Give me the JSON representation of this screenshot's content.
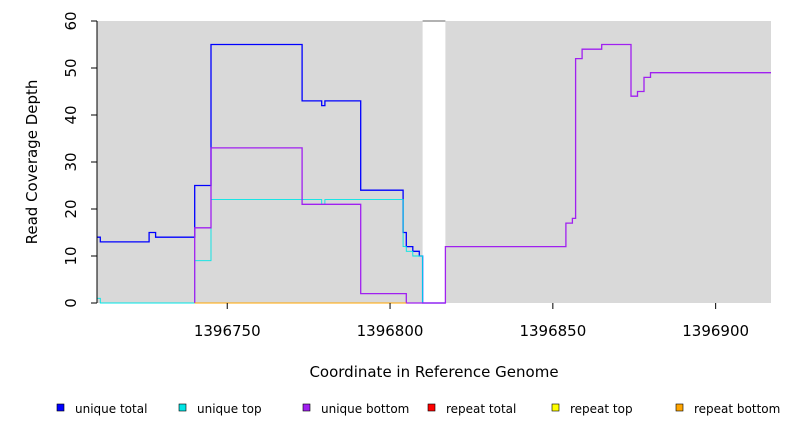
{
  "chart_data": {
    "type": "line",
    "title": "",
    "xlabel": "Coordinate in Reference Genome",
    "ylabel": "Read Coverage Depth",
    "xlim": [
      1396710,
      1396917
    ],
    "ylim": [
      0,
      60
    ],
    "xticks": [
      1396750,
      1396800,
      1396850,
      1396900
    ],
    "xtick_labels": [
      "1396750",
      "1396800",
      "1396850",
      "1396900"
    ],
    "yticks": [
      0,
      10,
      20,
      30,
      40,
      50,
      60
    ],
    "ytick_labels": [
      "0",
      "10",
      "20",
      "30",
      "40",
      "50",
      "60"
    ],
    "background_color": "#d9d9d9",
    "gap_region": [
      1396810,
      1396817
    ],
    "legend_position": "bottom",
    "series": [
      {
        "name": "unique total",
        "color": "#0000ff",
        "points": [
          [
            1396710,
            14
          ],
          [
            1396711,
            13
          ],
          [
            1396726,
            15
          ],
          [
            1396728,
            14
          ],
          [
            1396740,
            25
          ],
          [
            1396745,
            55
          ],
          [
            1396773,
            43
          ],
          [
            1396779,
            42
          ],
          [
            1396780,
            43
          ],
          [
            1396791,
            24
          ],
          [
            1396804,
            15
          ],
          [
            1396805,
            12
          ],
          [
            1396807,
            11
          ],
          [
            1396809,
            10
          ],
          [
            1396810,
            0
          ],
          [
            1396817,
            0
          ]
        ]
      },
      {
        "name": "unique top",
        "color": "#00e5e5",
        "points": [
          [
            1396710,
            1
          ],
          [
            1396711,
            0
          ],
          [
            1396740,
            9
          ],
          [
            1396745,
            22
          ],
          [
            1396778,
            22
          ],
          [
            1396779,
            21
          ],
          [
            1396780,
            22
          ],
          [
            1396804,
            12
          ],
          [
            1396805,
            11
          ],
          [
            1396807,
            10
          ],
          [
            1396809,
            10
          ],
          [
            1396810,
            0
          ]
        ]
      },
      {
        "name": "unique bottom",
        "color": "#a020f0",
        "points": [
          [
            1396740,
            0
          ],
          [
            1396740,
            16
          ],
          [
            1396745,
            33
          ],
          [
            1396773,
            21
          ],
          [
            1396791,
            2
          ],
          [
            1396805,
            0
          ],
          [
            1396817,
            0
          ],
          [
            1396817,
            12
          ],
          [
            1396854,
            17
          ],
          [
            1396856,
            18
          ],
          [
            1396857,
            52
          ],
          [
            1396859,
            54
          ],
          [
            1396865,
            55
          ],
          [
            1396874,
            44
          ],
          [
            1396876,
            45
          ],
          [
            1396878,
            48
          ],
          [
            1396880,
            49
          ],
          [
            1396917,
            49
          ]
        ]
      },
      {
        "name": "repeat total",
        "color": "#ff0000",
        "points": []
      },
      {
        "name": "repeat top",
        "color": "#ffff00",
        "points": []
      },
      {
        "name": "repeat bottom",
        "color": "#ffa500",
        "points": [
          [
            1396740,
            0
          ],
          [
            1396805,
            0
          ]
        ]
      }
    ]
  }
}
